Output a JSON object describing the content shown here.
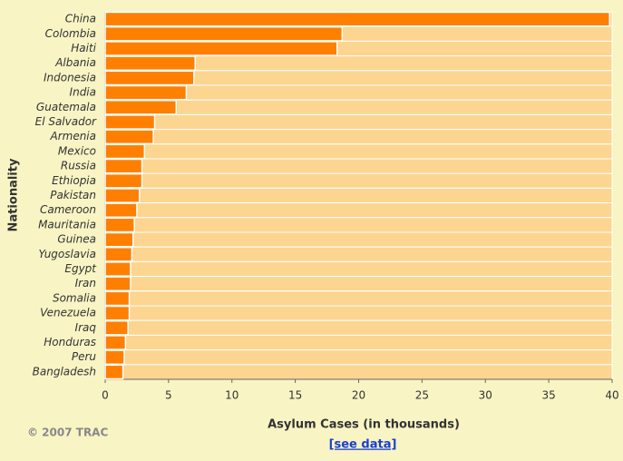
{
  "chart_data": {
    "type": "barh",
    "xlabel": "Asylum Cases (in thousands)",
    "ylabel": "Nationality",
    "categories": [
      "China",
      "Colombia",
      "Haiti",
      "Albania",
      "Indonesia",
      "India",
      "Guatemala",
      "El Salvador",
      "Armenia",
      "Mexico",
      "Russia",
      "Ethiopia",
      "Pakistan",
      "Cameroon",
      "Mauritania",
      "Guinea",
      "Yugoslavia",
      "Egypt",
      "Iran",
      "Somalia",
      "Venezuela",
      "Iraq",
      "Honduras",
      "Peru",
      "Bangladesh"
    ],
    "values": [
      39.8,
      18.7,
      18.3,
      7.1,
      7.0,
      6.4,
      5.6,
      3.9,
      3.8,
      3.1,
      2.9,
      2.9,
      2.7,
      2.5,
      2.3,
      2.2,
      2.1,
      2.0,
      2.0,
      1.9,
      1.9,
      1.8,
      1.6,
      1.5,
      1.4
    ],
    "color": "#ff7f00",
    "band_color": "#fcd590",
    "xlim": [
      0,
      40
    ],
    "xticks": [
      0,
      5,
      10,
      15,
      20,
      25,
      30,
      35,
      40
    ]
  },
  "footer": {
    "copyright": "© 2007 TRAC",
    "link": "[see data]"
  }
}
